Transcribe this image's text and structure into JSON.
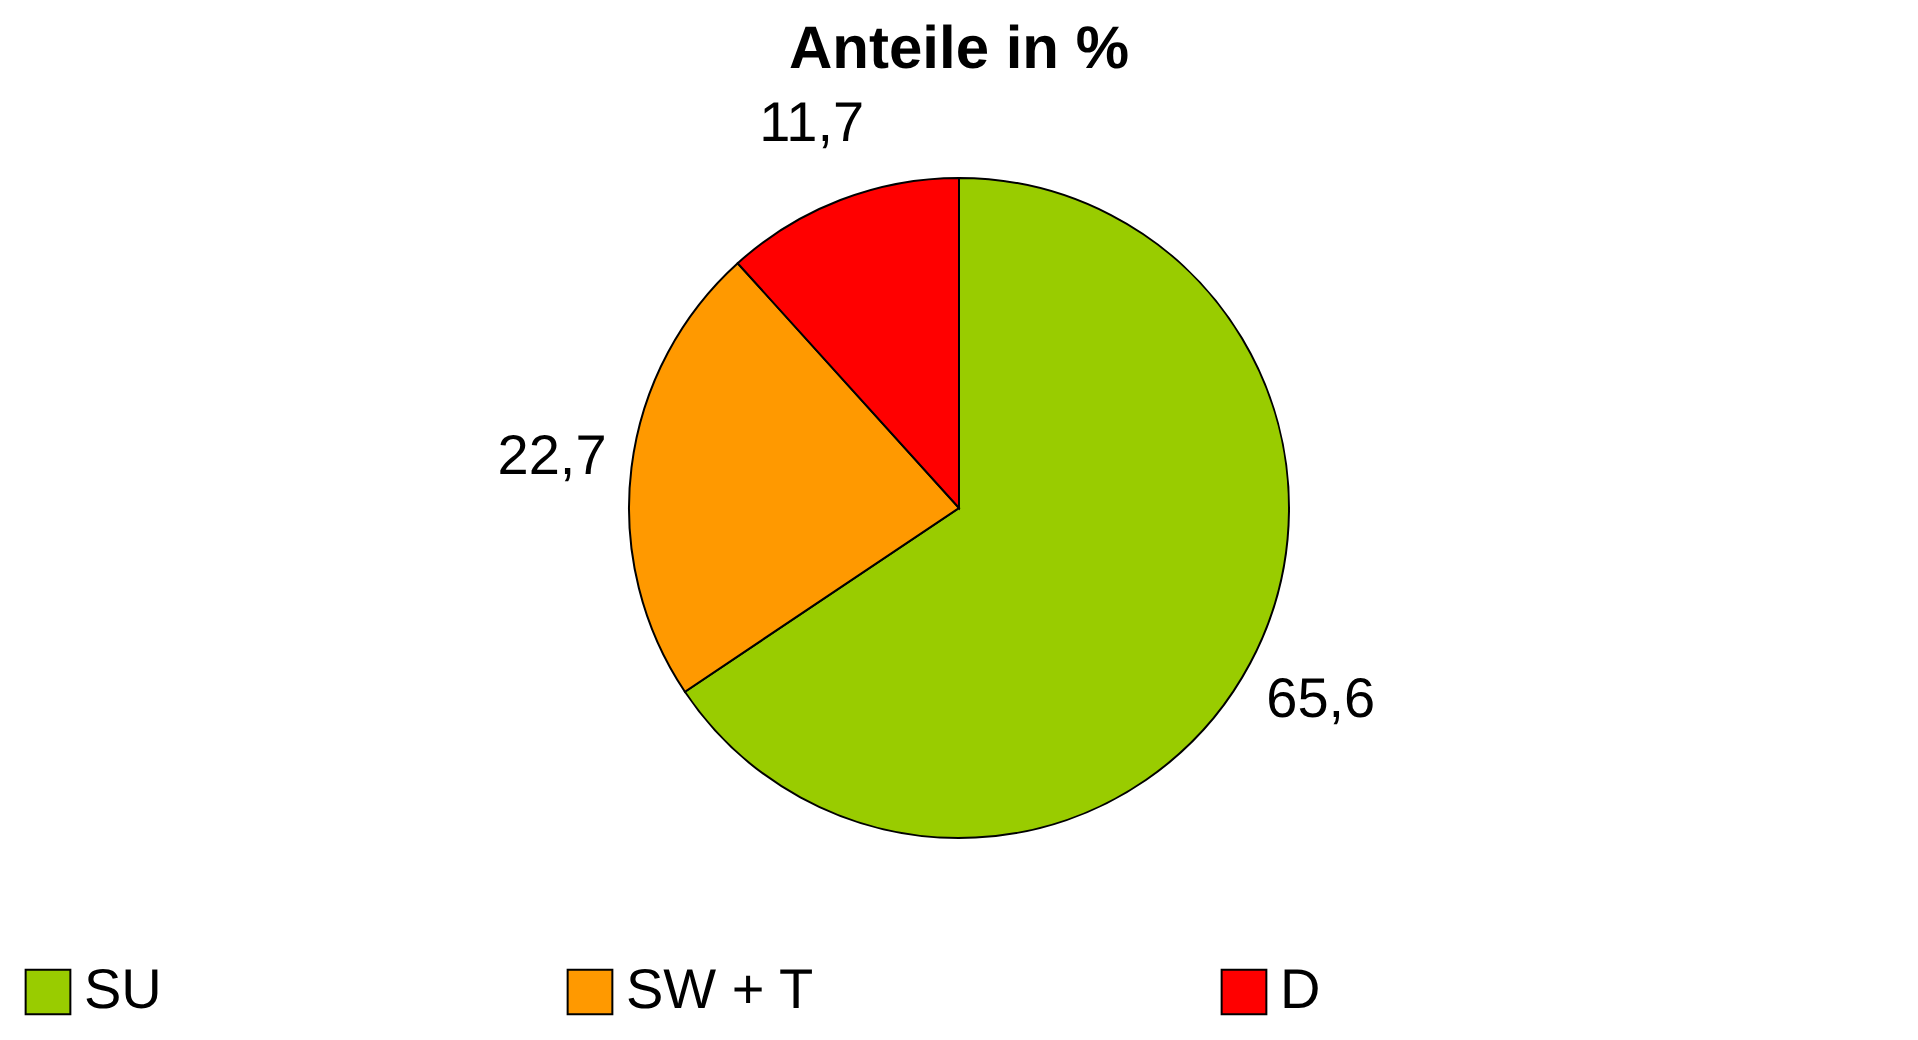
{
  "chart_data": {
    "type": "pie",
    "title": "Anteile in %",
    "categories": [
      "SU",
      "SW + T",
      "D"
    ],
    "values": [
      65.6,
      22.7,
      11.7
    ],
    "colors": [
      "#99cc00",
      "#ff9900",
      "#ff0000"
    ],
    "value_labels": [
      "65,6",
      "22,7",
      "11,7"
    ],
    "legend": "bottom"
  }
}
